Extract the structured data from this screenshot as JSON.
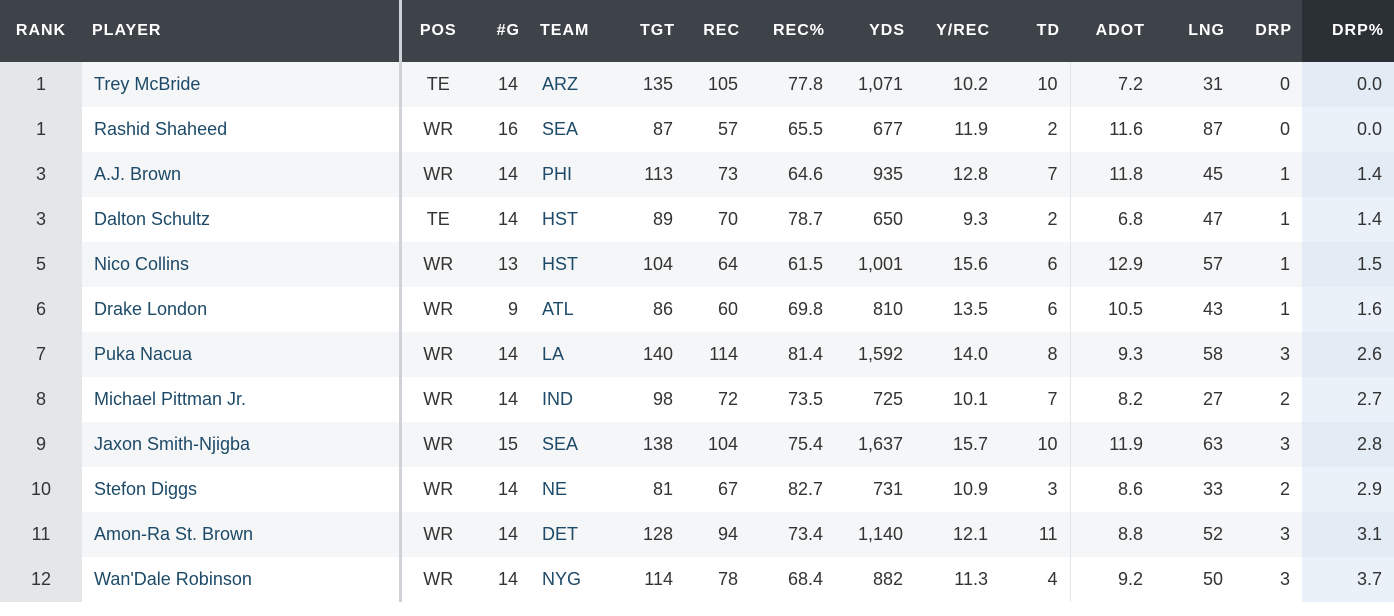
{
  "table": {
    "headers": [
      "RANK",
      "PLAYER",
      "POS",
      "#G",
      "TEAM",
      "TGT",
      "REC",
      "REC%",
      "YDS",
      "Y/REC",
      "TD",
      "ADOT",
      "LNG",
      "DRP",
      "DRP%"
    ],
    "rows": [
      [
        "1",
        "Trey McBride",
        "TE",
        "14",
        "ARZ",
        "135",
        "105",
        "77.8",
        "1,071",
        "10.2",
        "10",
        "7.2",
        "31",
        "0",
        "0.0"
      ],
      [
        "1",
        "Rashid Shaheed",
        "WR",
        "16",
        "SEA",
        "87",
        "57",
        "65.5",
        "677",
        "11.9",
        "2",
        "11.6",
        "87",
        "0",
        "0.0"
      ],
      [
        "3",
        "A.J. Brown",
        "WR",
        "14",
        "PHI",
        "113",
        "73",
        "64.6",
        "935",
        "12.8",
        "7",
        "11.8",
        "45",
        "1",
        "1.4"
      ],
      [
        "3",
        "Dalton Schultz",
        "TE",
        "14",
        "HST",
        "89",
        "70",
        "78.7",
        "650",
        "9.3",
        "2",
        "6.8",
        "47",
        "1",
        "1.4"
      ],
      [
        "5",
        "Nico Collins",
        "WR",
        "13",
        "HST",
        "104",
        "64",
        "61.5",
        "1,001",
        "15.6",
        "6",
        "12.9",
        "57",
        "1",
        "1.5"
      ],
      [
        "6",
        "Drake London",
        "WR",
        "9",
        "ATL",
        "86",
        "60",
        "69.8",
        "810",
        "13.5",
        "6",
        "10.5",
        "43",
        "1",
        "1.6"
      ],
      [
        "7",
        "Puka Nacua",
        "WR",
        "14",
        "LA",
        "140",
        "114",
        "81.4",
        "1,592",
        "14.0",
        "8",
        "9.3",
        "58",
        "3",
        "2.6"
      ],
      [
        "8",
        "Michael Pittman Jr.",
        "WR",
        "14",
        "IND",
        "98",
        "72",
        "73.5",
        "725",
        "10.1",
        "7",
        "8.2",
        "27",
        "2",
        "2.7"
      ],
      [
        "9",
        "Jaxon Smith-Njigba",
        "WR",
        "15",
        "SEA",
        "138",
        "104",
        "75.4",
        "1,637",
        "15.7",
        "10",
        "11.9",
        "63",
        "3",
        "2.8"
      ],
      [
        "10",
        "Stefon Diggs",
        "WR",
        "14",
        "NE",
        "81",
        "67",
        "82.7",
        "731",
        "10.9",
        "3",
        "8.6",
        "33",
        "2",
        "2.9"
      ],
      [
        "11",
        "Amon-Ra St. Brown",
        "WR",
        "14",
        "DET",
        "128",
        "94",
        "73.4",
        "1,140",
        "12.1",
        "11",
        "8.8",
        "52",
        "3",
        "3.1"
      ],
      [
        "12",
        "Wan'Dale Robinson",
        "WR",
        "14",
        "NYG",
        "114",
        "78",
        "68.4",
        "882",
        "11.3",
        "4",
        "9.2",
        "50",
        "3",
        "3.7"
      ]
    ]
  }
}
